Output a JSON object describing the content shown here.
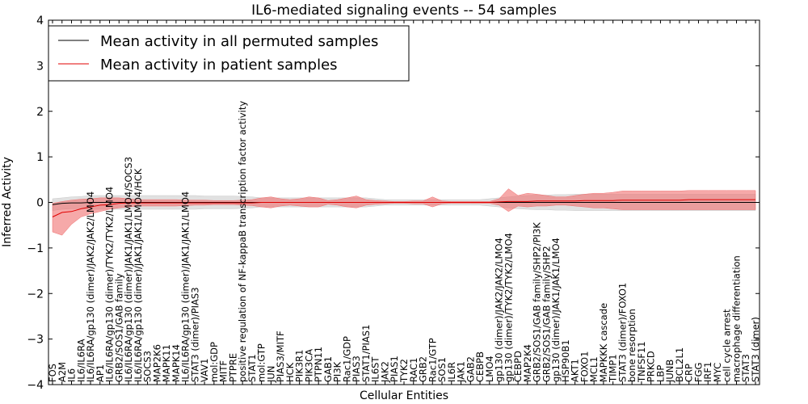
{
  "chart_data": {
    "type": "line",
    "title": "IL6-mediated signaling events -- 54 samples",
    "xlabel": "Cellular Entities",
    "ylabel": "Inferred Activity",
    "ylim": [
      -4,
      4
    ],
    "yticks": [
      -4,
      -3,
      -2,
      -1,
      0,
      1,
      2,
      3,
      4
    ],
    "grid": false,
    "legend_position": "top-left",
    "categories": [
      "FOS",
      "A2M",
      "IL6",
      "IL6/IL6RA",
      "IL6/IL6RA/gp130 (dimer)/JAK2/JAK2/LMO4",
      "AP1",
      "IL6/IL6RA/gp130 (dimer)/TYK2/TYK2/LMO4",
      "GRB2/SOS1/GAB family",
      "IL6/IL6RA/gp130 (dimer)/JAK1/JAK1/LMO4/SOCS3",
      "IL6/IL6RA/gp130 (dimer)/JAK1/JAK1/LMO4/HCK",
      "SOCS3",
      "MAP2K6",
      "MAPK11",
      "MAPK14",
      "IL6/IL6RA/gp130 (dimer)/JAK1/JAK1/LMO4",
      "STAT3 (dimer)/PIAS3",
      "VAV1",
      "mol:GDP",
      "MITF",
      "PTPRE",
      "positive regulation of NF-kappaB transcription factor activity",
      "STAT1",
      "mol:GTP",
      "JUN",
      "PIAS3/MITF",
      "HCK",
      "PIK3R1",
      "PIK3CA",
      "PTPN11",
      "GAB1",
      "PI3K",
      "Rac1/GDP",
      "PIAS3",
      "STAT1/PIAS1",
      "IL6ST",
      "JAK2",
      "PIAS1",
      "TYK2",
      "RAC1",
      "GRB2",
      "Rac1/GTP",
      "SOS1",
      "IL6R",
      "JAK1",
      "GAB2",
      "CEBPB",
      "LMO4",
      "gp130 (dimer)/JAK2/JAK2/LMO4",
      "gp130 (dimer)/TYK2/TYK2/LMO4",
      "CEBPD",
      "MAP2K4",
      "GRB2/SOS1/GAB family/SHP2/PI3K",
      "GRB2/SOS1/GAB family/SHP2",
      "gp130 (dimer)/JAK1/JAK1/LMO4",
      "HSP90B1",
      "AKT1",
      "FOXO1",
      "MCL1",
      "MAPKKK cascade",
      "TIMP1",
      "STAT3 (dimer)/FOXO1",
      "bone resorption",
      "TNFSF11",
      "PRKCD",
      "LBP",
      "JUNB",
      "BCL2L1",
      "CRP",
      "FGG",
      "IRF1",
      "MYC",
      "cell cycle arrest",
      "macrophage differentiation",
      "STAT3",
      "STAT3 (dimer)"
    ],
    "series": [
      {
        "name": "Mean activity in all permuted samples",
        "color": "#000000",
        "band_color": "#c8c8c8",
        "values": [
          -0.05,
          -0.02,
          -0.01,
          -0.01,
          0.0,
          0.0,
          0.0,
          0.0,
          0.0,
          0.0,
          0.0,
          0.0,
          0.0,
          0.0,
          0.0,
          0.0,
          0.0,
          0.0,
          0.0,
          0.0,
          0.0,
          0.0,
          0.0,
          0.0,
          0.0,
          0.0,
          0.0,
          0.0,
          0.0,
          0.0,
          0.0,
          0.0,
          0.0,
          0.0,
          0.0,
          0.0,
          0.0,
          0.0,
          0.0,
          0.0,
          0.0,
          0.0,
          0.0,
          0.0,
          0.0,
          0.0,
          0.0,
          0.0,
          0.0,
          0.0,
          0.0,
          0.0,
          0.0,
          0.0,
          0.0,
          0.0,
          0.0,
          0.0,
          0.0,
          0.0,
          0.0,
          0.0,
          0.0,
          0.0,
          0.0,
          0.0,
          0.0,
          0.0,
          0.0,
          0.0,
          0.0,
          0.0,
          0.0,
          0.0,
          0.0
        ],
        "upper": [
          0.08,
          0.1,
          0.12,
          0.13,
          0.15,
          0.15,
          0.15,
          0.15,
          0.15,
          0.15,
          0.15,
          0.15,
          0.15,
          0.15,
          0.15,
          0.15,
          0.14,
          0.14,
          0.14,
          0.14,
          0.13,
          0.12,
          0.1,
          0.1,
          0.1,
          0.1,
          0.1,
          0.1,
          0.1,
          0.1,
          0.1,
          0.1,
          0.1,
          0.1,
          0.08,
          0.06,
          0.06,
          0.06,
          0.06,
          0.06,
          0.06,
          0.06,
          0.06,
          0.06,
          0.06,
          0.06,
          0.08,
          0.1,
          0.12,
          0.14,
          0.15,
          0.16,
          0.16,
          0.17,
          0.17,
          0.18,
          0.18,
          0.18,
          0.18,
          0.18,
          0.18,
          0.18,
          0.18,
          0.18,
          0.18,
          0.18,
          0.18,
          0.18,
          0.18,
          0.18,
          0.18,
          0.18,
          0.18,
          0.18,
          0.18
        ],
        "lower": [
          -0.18,
          -0.15,
          -0.14,
          -0.14,
          -0.15,
          -0.15,
          -0.15,
          -0.15,
          -0.15,
          -0.15,
          -0.15,
          -0.15,
          -0.15,
          -0.15,
          -0.15,
          -0.15,
          -0.14,
          -0.14,
          -0.14,
          -0.14,
          -0.13,
          -0.12,
          -0.1,
          -0.1,
          -0.1,
          -0.1,
          -0.1,
          -0.1,
          -0.1,
          -0.1,
          -0.1,
          -0.1,
          -0.1,
          -0.1,
          -0.08,
          -0.06,
          -0.06,
          -0.06,
          -0.06,
          -0.06,
          -0.06,
          -0.06,
          -0.06,
          -0.06,
          -0.06,
          -0.06,
          -0.08,
          -0.1,
          -0.12,
          -0.14,
          -0.15,
          -0.16,
          -0.16,
          -0.17,
          -0.17,
          -0.18,
          -0.18,
          -0.18,
          -0.18,
          -0.18,
          -0.18,
          -0.18,
          -0.18,
          -0.18,
          -0.18,
          -0.18,
          -0.18,
          -0.18,
          -0.18,
          -0.18,
          -0.18,
          -0.18,
          -0.18,
          -0.18,
          -0.18
        ]
      },
      {
        "name": "Mean activity in patient samples",
        "color": "#e00000",
        "band_color": "#f07070",
        "values": [
          -0.32,
          -0.22,
          -0.2,
          -0.14,
          -0.1,
          -0.06,
          -0.05,
          -0.02,
          -0.01,
          -0.01,
          -0.01,
          -0.01,
          -0.01,
          -0.01,
          -0.01,
          -0.01,
          -0.01,
          -0.01,
          -0.01,
          -0.01,
          -0.01,
          -0.01,
          0.0,
          0.0,
          0.0,
          0.0,
          0.0,
          0.0,
          0.0,
          0.0,
          0.0,
          0.0,
          0.0,
          0.0,
          0.0,
          0.0,
          0.0,
          0.0,
          0.0,
          0.0,
          0.0,
          0.0,
          0.0,
          0.0,
          0.0,
          0.0,
          0.0,
          0.01,
          0.02,
          0.02,
          0.02,
          0.03,
          0.03,
          0.03,
          0.03,
          0.03,
          0.04,
          0.04,
          0.04,
          0.04,
          0.05,
          0.05,
          0.05,
          0.05,
          0.05,
          0.05,
          0.05,
          0.06,
          0.06,
          0.06,
          0.06,
          0.06,
          0.06,
          0.06,
          0.06
        ],
        "upper": [
          -0.02,
          0.02,
          0.05,
          0.07,
          0.08,
          0.1,
          0.1,
          0.1,
          0.08,
          0.06,
          0.06,
          0.06,
          0.06,
          0.06,
          0.05,
          0.05,
          0.05,
          0.04,
          0.04,
          0.04,
          0.05,
          0.06,
          0.1,
          0.12,
          0.08,
          0.06,
          0.08,
          0.12,
          0.1,
          0.04,
          0.06,
          0.1,
          0.14,
          0.06,
          0.04,
          0.03,
          0.02,
          0.02,
          0.03,
          0.03,
          0.12,
          0.03,
          0.02,
          0.02,
          0.02,
          0.02,
          0.02,
          0.08,
          0.3,
          0.15,
          0.2,
          0.18,
          0.15,
          0.12,
          0.12,
          0.15,
          0.18,
          0.2,
          0.2,
          0.22,
          0.25,
          0.25,
          0.25,
          0.25,
          0.25,
          0.25,
          0.25,
          0.26,
          0.26,
          0.26,
          0.26,
          0.26,
          0.26,
          0.26,
          0.26
        ],
        "lower": [
          -0.65,
          -0.72,
          -0.48,
          -0.32,
          -0.25,
          -0.2,
          -0.15,
          -0.12,
          -0.1,
          -0.08,
          -0.08,
          -0.08,
          -0.08,
          -0.08,
          -0.07,
          -0.06,
          -0.06,
          -0.05,
          -0.05,
          -0.05,
          -0.06,
          -0.07,
          -0.1,
          -0.12,
          -0.08,
          -0.06,
          -0.08,
          -0.1,
          -0.1,
          -0.04,
          -0.06,
          -0.1,
          -0.12,
          -0.06,
          -0.04,
          -0.03,
          -0.02,
          -0.02,
          -0.03,
          -0.03,
          -0.1,
          -0.03,
          -0.02,
          -0.02,
          -0.02,
          -0.02,
          -0.02,
          -0.06,
          -0.2,
          -0.08,
          -0.1,
          -0.08,
          -0.08,
          -0.06,
          -0.06,
          -0.08,
          -0.1,
          -0.12,
          -0.12,
          -0.14,
          -0.16,
          -0.16,
          -0.16,
          -0.16,
          -0.16,
          -0.16,
          -0.16,
          -0.16,
          -0.16,
          -0.16,
          -0.16,
          -0.16,
          -0.16,
          -0.16,
          -0.16
        ]
      }
    ]
  }
}
